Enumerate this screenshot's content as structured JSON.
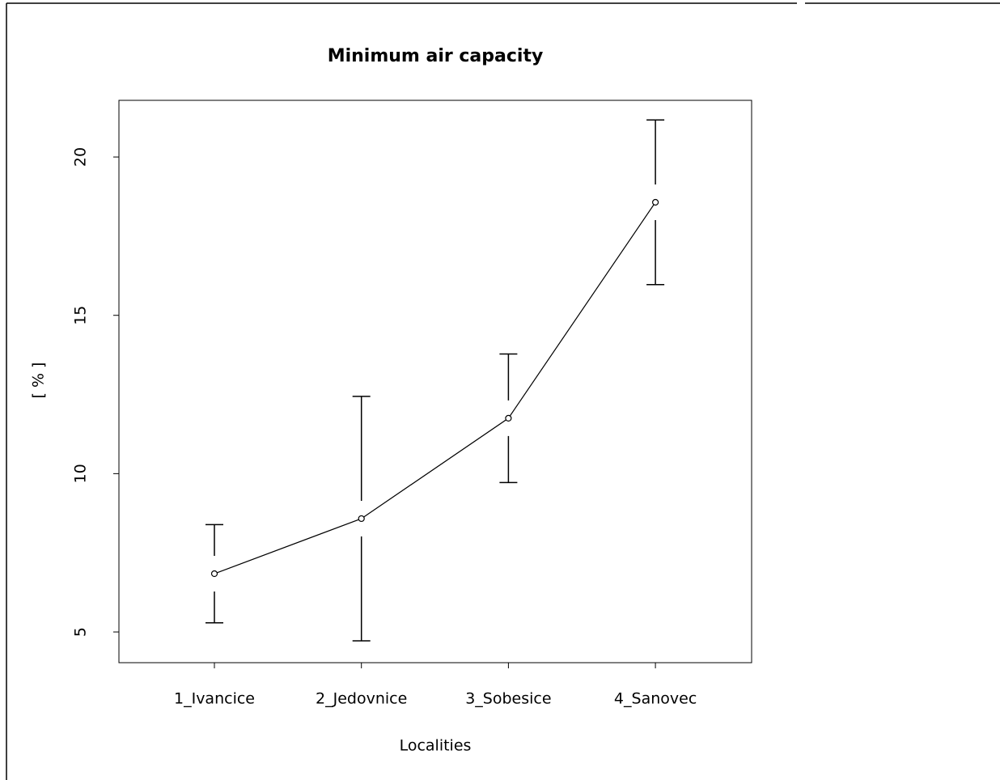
{
  "chart_data": {
    "type": "line",
    "title": "Minimum air capacity",
    "x_label": "Localities",
    "y_label": "[ % ]",
    "categories": [
      "1_Ivancice",
      "2_Jedovnice",
      "3_Sobesice",
      "4_Sanovec"
    ],
    "series": [
      {
        "name": "Minimum air capacity",
        "color": "#000000",
        "values": [
          6.84,
          8.58,
          11.75,
          18.57
        ],
        "errors": [
          1.55,
          3.86,
          2.03,
          2.6
        ]
      }
    ],
    "ylim": [
      4.03,
      21.79
    ],
    "yticks": [
      5,
      10,
      15,
      20
    ]
  }
}
